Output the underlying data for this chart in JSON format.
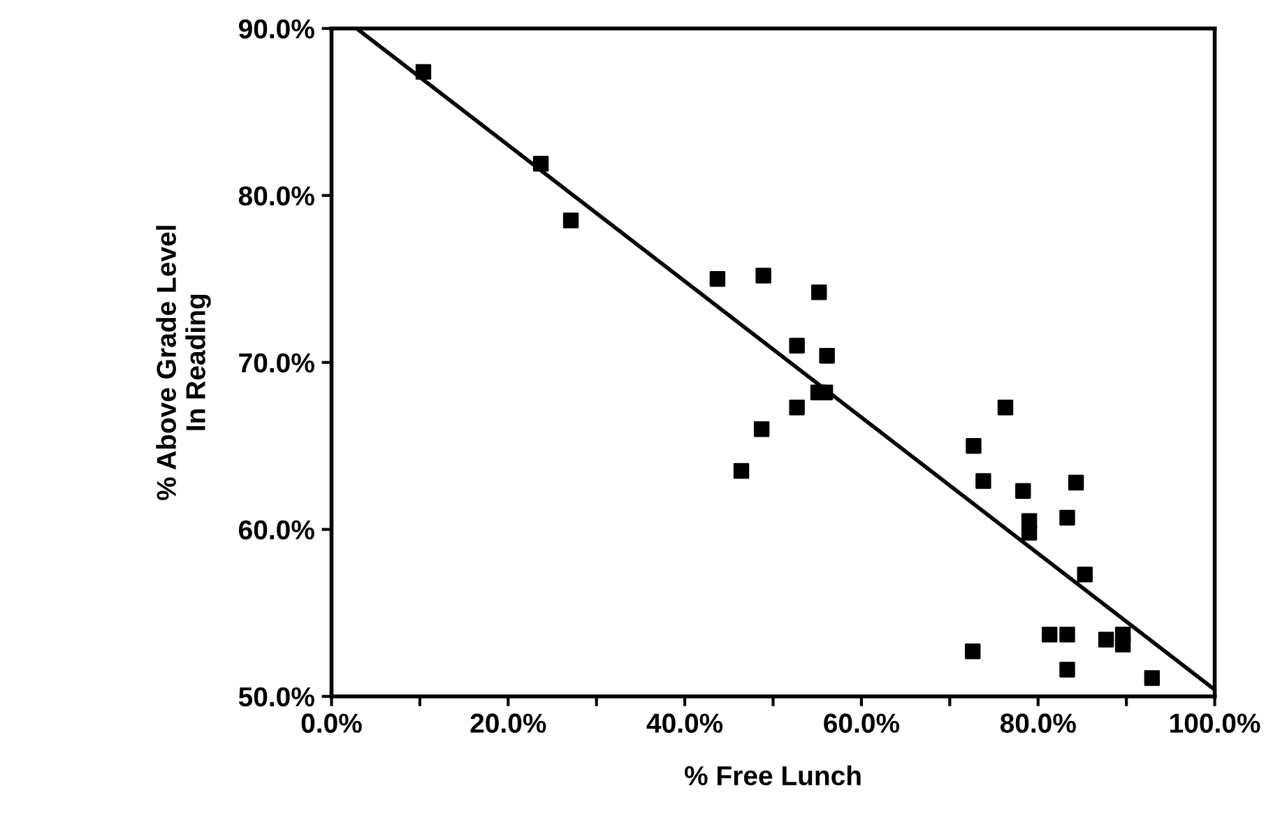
{
  "chart_data": {
    "type": "scatter",
    "xlabel": "% Free Lunch",
    "ylabel": "% Above Grade Level\nIn Reading",
    "xlim": [
      0,
      100
    ],
    "ylim": [
      50,
      90
    ],
    "xticks": [
      {
        "value": 0,
        "label": "0.0%"
      },
      {
        "value": 10,
        "label": null
      },
      {
        "value": 20,
        "label": "20.0%"
      },
      {
        "value": 30,
        "label": null
      },
      {
        "value": 40,
        "label": "40.0%"
      },
      {
        "value": 50,
        "label": null
      },
      {
        "value": 60,
        "label": "60.0%"
      },
      {
        "value": 70,
        "label": null
      },
      {
        "value": 80,
        "label": "80.0%"
      },
      {
        "value": 90,
        "label": null
      },
      {
        "value": 100,
        "label": "100.0%"
      }
    ],
    "yticks": [
      {
        "value": 50,
        "label": "50.0%"
      },
      {
        "value": 60,
        "label": "60.0%"
      },
      {
        "value": 70,
        "label": "70.0%"
      },
      {
        "value": 80,
        "label": "80.0%"
      },
      {
        "value": 90,
        "label": "90.0%"
      }
    ],
    "grid": false,
    "legend": false,
    "series": [
      {
        "marker": "square",
        "color": "#000000",
        "x": [
          10.4,
          23.7,
          27.1,
          43.7,
          48.9,
          55.2,
          52.7,
          56.1,
          55.1,
          55.9,
          52.7,
          48.7,
          46.4,
          72.7,
          76.3,
          73.8,
          78.3,
          84.3,
          79.0,
          79.0,
          83.3,
          85.3,
          72.6,
          81.3,
          83.3,
          83.3,
          87.7,
          89.6,
          89.6,
          92.9
        ],
        "values": [
          87.4,
          81.9,
          78.5,
          75.0,
          75.2,
          74.2,
          71.0,
          70.4,
          68.2,
          68.2,
          67.3,
          66.0,
          63.5,
          65.0,
          67.3,
          62.9,
          62.3,
          62.8,
          60.5,
          59.8,
          60.7,
          57.3,
          52.7,
          53.7,
          53.7,
          51.6,
          53.4,
          53.7,
          53.1,
          51.1
        ]
      },
      {
        "type": "line",
        "color": "#000000",
        "x": [
          3.1,
          100
        ],
        "values": [
          89.9,
          50.4
        ]
      }
    ]
  }
}
